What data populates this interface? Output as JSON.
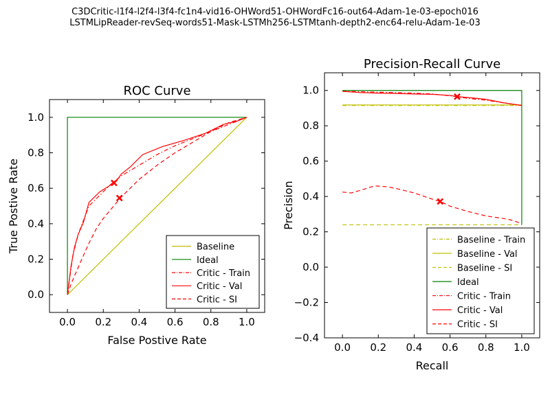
{
  "figure": {
    "suptitle_line1": "C3DCritic-l1f4-l2f4-l3f4-fc1n4-vid16-OHWord51-OHWordFc16-out64-Adam-1e-03-epoch016",
    "suptitle_line2": "LSTMLipReader-revSeq-words51-Mask-LSTMh256-LSTMtanh-depth2-enc64-relu-Adam-1e-03"
  },
  "chart_data": [
    {
      "type": "line",
      "title": "ROC Curve",
      "xlabel": "False Postive Rate",
      "ylabel": "True Postive Rate",
      "xlim": [
        -0.1,
        1.1
      ],
      "ylim": [
        -0.1,
        1.1
      ],
      "xticks": [
        "0.0",
        "0.2",
        "0.4",
        "0.6",
        "0.8",
        "1.0"
      ],
      "yticks": [
        "0.0",
        "0.2",
        "0.4",
        "0.6",
        "0.8",
        "1.0"
      ],
      "grid": false,
      "legend_position": "lower-right",
      "series": [
        {
          "name": "Baseline",
          "color": "#bfbf00",
          "style": "solid",
          "x": [
            0,
            1
          ],
          "y": [
            0,
            1
          ]
        },
        {
          "name": "Ideal",
          "color": "#008000",
          "style": "solid",
          "x": [
            0,
            0,
            1
          ],
          "y": [
            0,
            1,
            1
          ]
        },
        {
          "name": "Critic - Train",
          "color": "#ff0000",
          "style": "dashdot",
          "x": [
            0,
            0.03,
            0.06,
            0.09,
            0.12,
            0.18,
            0.24,
            0.3,
            0.4,
            0.5,
            0.6,
            0.7,
            0.8,
            0.9,
            1.0
          ],
          "y": [
            0,
            0.22,
            0.34,
            0.42,
            0.5,
            0.56,
            0.62,
            0.67,
            0.73,
            0.79,
            0.84,
            0.88,
            0.92,
            0.96,
            1.0
          ]
        },
        {
          "name": "Critic - Val",
          "color": "#ff0000",
          "style": "solid",
          "x": [
            0,
            0.02,
            0.04,
            0.06,
            0.09,
            0.12,
            0.18,
            0.26,
            0.28,
            0.3,
            0.35,
            0.42,
            0.53,
            0.65,
            0.77,
            0.87,
            0.95,
            1.0
          ],
          "y": [
            0,
            0.16,
            0.27,
            0.34,
            0.41,
            0.52,
            0.58,
            0.63,
            0.65,
            0.68,
            0.72,
            0.79,
            0.835,
            0.87,
            0.91,
            0.96,
            0.98,
            1.0
          ],
          "marker": {
            "x": 0.26,
            "y": 0.63
          }
        },
        {
          "name": "Critic - SI",
          "color": "#ff0000",
          "style": "dashed",
          "x": [
            0,
            0.02,
            0.05,
            0.08,
            0.12,
            0.16,
            0.2,
            0.25,
            0.3,
            0.4,
            0.5,
            0.6,
            0.7,
            0.8,
            0.9,
            1.0
          ],
          "y": [
            0,
            0.06,
            0.13,
            0.2,
            0.29,
            0.37,
            0.43,
            0.49,
            0.55,
            0.65,
            0.73,
            0.8,
            0.86,
            0.92,
            0.97,
            1.0
          ],
          "marker": {
            "x": 0.29,
            "y": 0.545
          }
        }
      ]
    },
    {
      "type": "line",
      "title": "Precision-Recall Curve",
      "xlabel": "Recall",
      "ylabel": "Precision",
      "xlim": [
        -0.1,
        1.1
      ],
      "ylim": [
        -0.4,
        1.1
      ],
      "xticks": [
        "0.0",
        "0.2",
        "0.4",
        "0.6",
        "0.8",
        "1.0"
      ],
      "yticks": [
        "−0.4",
        "−0.2",
        "0.0",
        "0.2",
        "0.4",
        "0.6",
        "0.8",
        "1.0"
      ],
      "grid": false,
      "legend_position": "lower-right",
      "series": [
        {
          "name": "Baseline - Train",
          "color": "#bfbf00",
          "style": "dashdot",
          "x": [
            0,
            1
          ],
          "y": [
            0.915,
            0.915
          ]
        },
        {
          "name": "Baseline - Val",
          "color": "#bfbf00",
          "style": "solid",
          "x": [
            0,
            1
          ],
          "y": [
            0.918,
            0.918
          ]
        },
        {
          "name": "Baseline - SI",
          "color": "#bfbf00",
          "style": "dashed",
          "x": [
            0,
            1
          ],
          "y": [
            0.24,
            0.24
          ]
        },
        {
          "name": "Ideal",
          "color": "#008000",
          "style": "solid",
          "x": [
            0,
            1,
            1
          ],
          "y": [
            1,
            1,
            0.24
          ]
        },
        {
          "name": "Critic - Train",
          "color": "#ff0000",
          "style": "dashdot",
          "x": [
            0,
            0.1,
            0.2,
            0.3,
            0.4,
            0.5,
            0.6,
            0.7,
            0.8,
            0.9,
            1.0
          ],
          "y": [
            0.995,
            0.993,
            0.99,
            0.988,
            0.985,
            0.98,
            0.97,
            0.955,
            0.945,
            0.93,
            0.915
          ]
        },
        {
          "name": "Critic - Val",
          "color": "#ff0000",
          "style": "solid",
          "x": [
            0,
            0.1,
            0.2,
            0.3,
            0.4,
            0.5,
            0.6,
            0.64,
            0.7,
            0.8,
            0.9,
            1.0
          ],
          "y": [
            0.995,
            0.988,
            0.985,
            0.983,
            0.98,
            0.978,
            0.972,
            0.965,
            0.96,
            0.95,
            0.93,
            0.915
          ],
          "marker": {
            "x": 0.64,
            "y": 0.965
          }
        },
        {
          "name": "Critic - SI",
          "color": "#ff0000",
          "style": "dashed",
          "x": [
            0,
            0.05,
            0.1,
            0.18,
            0.25,
            0.3,
            0.4,
            0.5,
            0.55,
            0.6,
            0.7,
            0.8,
            0.9,
            0.95,
            1.0
          ],
          "y": [
            0.425,
            0.42,
            0.435,
            0.46,
            0.455,
            0.445,
            0.42,
            0.385,
            0.37,
            0.345,
            0.315,
            0.29,
            0.275,
            0.265,
            0.245
          ],
          "marker": {
            "x": 0.545,
            "y": 0.372
          }
        }
      ]
    }
  ]
}
